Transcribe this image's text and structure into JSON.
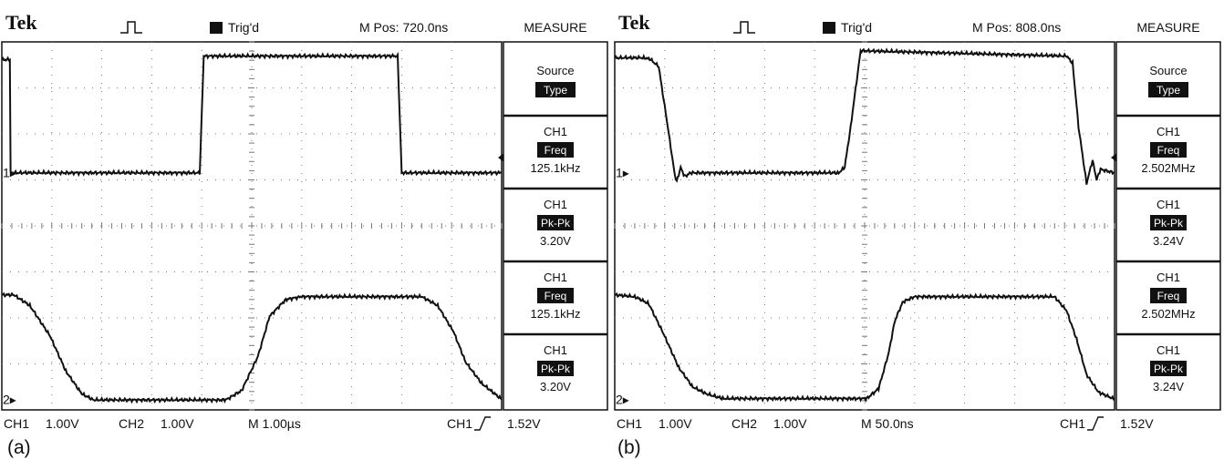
{
  "chart_data": [
    {
      "type": "line",
      "panel_label": "(a)",
      "header": {
        "brand": "Tek",
        "trig_status": "Trig'd",
        "pos_label": "M Pos: 720.0ns"
      },
      "menu": {
        "title": "MEASURE",
        "source_label": "Source",
        "type_label": "Type",
        "items": [
          {
            "channel": "CH1",
            "kind": "Freq",
            "value": "125.1kHz"
          },
          {
            "channel": "CH1",
            "kind": "Pk-Pk",
            "value": "3.20V"
          },
          {
            "channel": "CH1",
            "kind": "Freq",
            "value": "125.1kHz"
          },
          {
            "channel": "CH1",
            "kind": "Pk-Pk",
            "value": "3.20V"
          }
        ]
      },
      "footer": {
        "ch1_label": "CH1",
        "ch1_scale": "1.00V",
        "ch2_label": "CH2",
        "ch2_scale": "1.00V",
        "timebase": "M 1.00µs",
        "trigger_source": "CH1",
        "trigger_level": "1.52V"
      },
      "x_divisions": 10,
      "y_divisions": 8,
      "grid": true,
      "series": [
        {
          "name": "CH1",
          "ref_marker": "1",
          "t": [
            0,
            0.2,
            0.22,
            4.95,
            5.05,
            9.9,
            10.0,
            12.5
          ],
          "v": [
            4.7,
            4.7,
            1.5,
            1.5,
            4.8,
            4.8,
            1.5,
            1.5
          ]
        },
        {
          "name": "CH2",
          "ref_marker": "2",
          "t": [
            0,
            0.3,
            0.7,
            1.2,
            1.6,
            2.0,
            2.3,
            5.6,
            6.0,
            6.4,
            6.7,
            7.1,
            7.5,
            10.5,
            10.9,
            11.3,
            11.6,
            12.0,
            12.5
          ],
          "v": [
            -1.95,
            -1.95,
            -2.25,
            -3.1,
            -4.1,
            -4.75,
            -4.92,
            -4.92,
            -4.65,
            -3.7,
            -2.55,
            -2.08,
            -2.0,
            -2.0,
            -2.25,
            -3.0,
            -3.85,
            -4.45,
            -4.9
          ]
        }
      ]
    },
    {
      "type": "line",
      "panel_label": "(b)",
      "header": {
        "brand": "Tek",
        "trig_status": "Trig'd",
        "pos_label": "M Pos: 808.0ns"
      },
      "menu": {
        "title": "MEASURE",
        "source_label": "Source",
        "type_label": "Type",
        "items": [
          {
            "channel": "CH1",
            "kind": "Freq",
            "value": "2.502MHz"
          },
          {
            "channel": "CH1",
            "kind": "Pk-Pk",
            "value": "3.24V"
          },
          {
            "channel": "CH1",
            "kind": "Freq",
            "value": "2.502MHz"
          },
          {
            "channel": "CH1",
            "kind": "Pk-Pk",
            "value": "3.24V"
          }
        ]
      },
      "footer": {
        "ch1_label": "CH1",
        "ch1_scale": "1.00V",
        "ch2_label": "CH2",
        "ch2_scale": "1.00V",
        "timebase": "M 50.0ns",
        "trigger_source": "CH1",
        "trigger_level": "1.52V"
      },
      "x_divisions": 10,
      "y_divisions": 8,
      "grid": true,
      "series": [
        {
          "name": "CH1",
          "ref_marker": "1",
          "t": [
            0,
            0.75,
            0.9,
            1.1,
            1.3,
            1.5,
            1.55,
            1.65,
            1.75,
            1.9,
            5.6,
            5.75,
            5.9,
            6.15,
            11.3,
            11.45,
            11.6,
            11.8,
            11.95,
            12.05,
            12.15,
            12.5
          ],
          "v": [
            4.75,
            4.75,
            4.7,
            4.5,
            3.0,
            1.45,
            1.25,
            1.65,
            1.4,
            1.5,
            1.5,
            1.65,
            2.8,
            4.95,
            4.8,
            4.6,
            2.8,
            1.2,
            1.85,
            1.3,
            1.6,
            1.5
          ]
        },
        {
          "name": "CH2",
          "ref_marker": "2",
          "t": [
            0,
            0.5,
            0.85,
            1.2,
            1.6,
            1.95,
            2.3,
            2.7,
            6.3,
            6.6,
            6.85,
            7.0,
            7.2,
            7.5,
            11.0,
            11.3,
            11.55,
            11.8,
            12.1,
            12.5
          ],
          "v": [
            -1.95,
            -2.0,
            -2.2,
            -3.0,
            -4.0,
            -4.55,
            -4.75,
            -4.88,
            -4.88,
            -4.6,
            -3.6,
            -2.7,
            -2.15,
            -2.0,
            -2.0,
            -2.4,
            -3.2,
            -4.2,
            -4.7,
            -4.9
          ]
        }
      ]
    }
  ]
}
